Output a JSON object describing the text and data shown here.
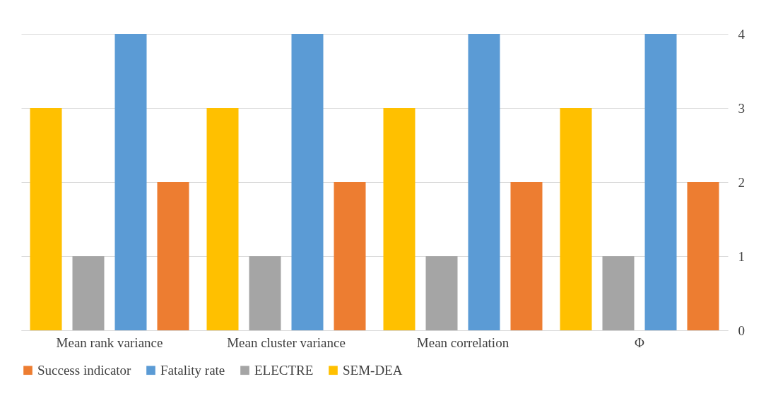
{
  "chart_data": {
    "type": "bar",
    "categories": [
      "Mean rank variance",
      "Mean cluster variance",
      "Mean correlation",
      "Φ"
    ],
    "series": [
      {
        "name": "SEM-DEA",
        "color": "#ffc000",
        "values": [
          3,
          3,
          3,
          3
        ]
      },
      {
        "name": "ELECTRE",
        "color": "#a5a5a5",
        "values": [
          1,
          1,
          1,
          1
        ]
      },
      {
        "name": "Fatality rate",
        "color": "#5b9bd5",
        "values": [
          4,
          4,
          4,
          4
        ]
      },
      {
        "name": "Success indicator",
        "color": "#ed7d31",
        "values": [
          2,
          2,
          2,
          2
        ]
      }
    ],
    "ylim": [
      0,
      4
    ],
    "yticks": [
      0,
      1,
      2,
      3,
      4
    ],
    "grid": "y",
    "legend": "bottom"
  }
}
